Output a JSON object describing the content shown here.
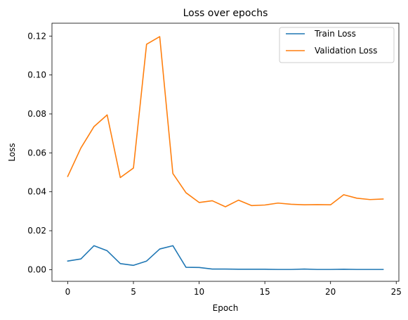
{
  "chart_data": {
    "type": "line",
    "title": "Loss over epochs",
    "xlabel": "Epoch",
    "ylabel": "Loss",
    "xlim": [
      -1.2,
      25.2
    ],
    "ylim": [
      -0.006,
      0.1266
    ],
    "xticks": [
      0,
      5,
      10,
      15,
      20,
      25
    ],
    "xtick_labels": [
      "0",
      "5",
      "10",
      "15",
      "20",
      "25"
    ],
    "yticks": [
      0.0,
      0.02,
      0.04,
      0.06,
      0.08,
      0.1,
      0.12
    ],
    "ytick_labels": [
      "0.00",
      "0.02",
      "0.04",
      "0.06",
      "0.08",
      "0.10",
      "0.12"
    ],
    "grid": false,
    "legend_position": "upper right",
    "x": [
      0,
      1,
      2,
      3,
      4,
      5,
      6,
      7,
      8,
      9,
      10,
      11,
      12,
      13,
      14,
      15,
      16,
      17,
      18,
      19,
      20,
      21,
      22,
      23,
      24
    ],
    "series": [
      {
        "name": "Train Loss",
        "color": "#1f77b4",
        "values": [
          0.0044,
          0.0055,
          0.0123,
          0.0097,
          0.0031,
          0.0022,
          0.0044,
          0.0106,
          0.0123,
          0.0012,
          0.0011,
          0.0003,
          0.0003,
          0.0002,
          0.0002,
          0.0002,
          0.0001,
          0.0001,
          0.0003,
          0.0001,
          0.0001,
          0.0002,
          0.0001,
          0.0001,
          0.0001
        ]
      },
      {
        "name": "Validation Loss",
        "color": "#ff7f0e",
        "values": [
          0.0479,
          0.0625,
          0.0735,
          0.0795,
          0.0473,
          0.0522,
          0.1158,
          0.1197,
          0.0494,
          0.0395,
          0.0345,
          0.0354,
          0.0323,
          0.0357,
          0.0329,
          0.0332,
          0.0342,
          0.0336,
          0.0333,
          0.0334,
          0.0333,
          0.0385,
          0.0367,
          0.036,
          0.0363
        ]
      }
    ]
  }
}
